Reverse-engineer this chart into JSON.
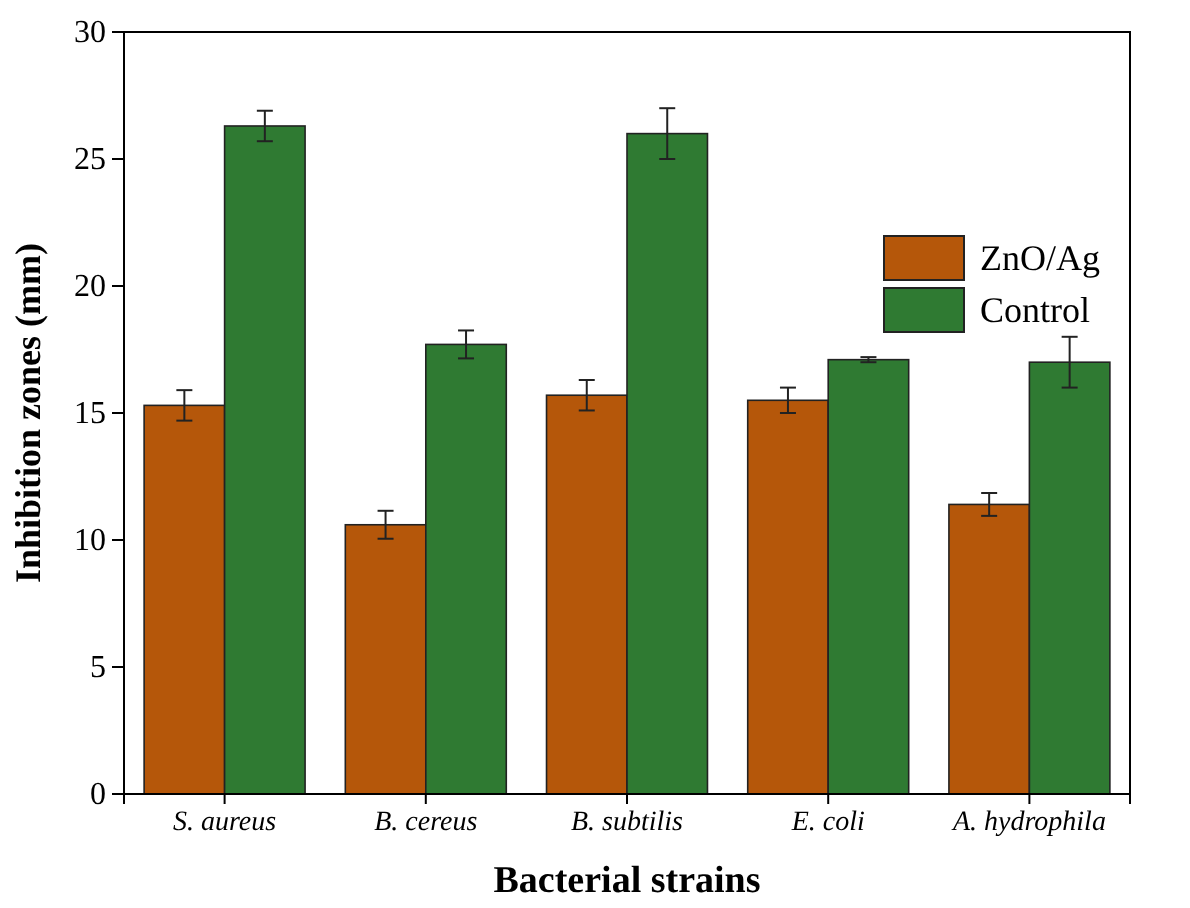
{
  "chart_data": {
    "type": "bar",
    "xlabel": "Bacterial strains",
    "ylabel": "Inhibition zones (mm)",
    "categories": [
      "S. aureus",
      "B. cereus",
      "B. subtilis",
      "E. coli",
      "A. hydrophila"
    ],
    "series": [
      {
        "name": "ZnO/Ag",
        "color": "#b5570a",
        "values": [
          15.3,
          10.6,
          15.7,
          15.5,
          11.4
        ],
        "errors": [
          0.6,
          0.55,
          0.6,
          0.5,
          0.45
        ]
      },
      {
        "name": "Control",
        "color": "#2f7a32",
        "values": [
          26.3,
          17.7,
          26.0,
          17.1,
          17.0
        ],
        "errors": [
          0.6,
          0.55,
          1.0,
          0.1,
          1.0
        ]
      }
    ],
    "ylim": [
      0,
      30
    ],
    "yticks": [
      0,
      5,
      10,
      15,
      20,
      25,
      30
    ],
    "legend": "top right",
    "grid": false
  }
}
